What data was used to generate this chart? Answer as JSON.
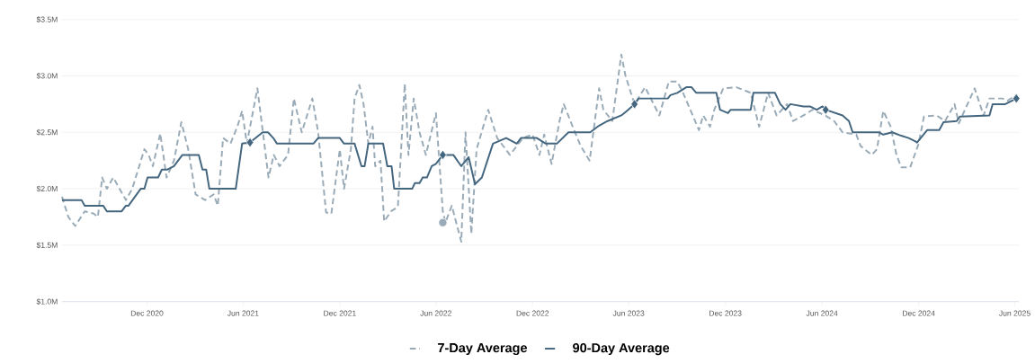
{
  "chart_data": {
    "type": "line",
    "xlim": [
      "2020-06-23",
      "2025-06-09"
    ],
    "ylim": [
      1.0,
      3.5
    ],
    "xticks": [
      {
        "value": "2020-12-01",
        "label": "Dec 2020"
      },
      {
        "value": "2021-06-01",
        "label": "Jun 2021"
      },
      {
        "value": "2021-12-01",
        "label": "Dec 2021"
      },
      {
        "value": "2022-06-01",
        "label": "Jun 2022"
      },
      {
        "value": "2022-12-01",
        "label": "Dec 2022"
      },
      {
        "value": "2023-06-01",
        "label": "Jun 2023"
      },
      {
        "value": "2023-12-01",
        "label": "Dec 2023"
      },
      {
        "value": "2024-06-01",
        "label": "Jun 2024"
      },
      {
        "value": "2024-12-01",
        "label": "Dec 2024"
      },
      {
        "value": "2025-06-01",
        "label": "Jun 2025"
      }
    ],
    "yticks": [
      {
        "value": 1.0,
        "label": "$1.0M"
      },
      {
        "value": 1.5,
        "label": "$1.5M"
      },
      {
        "value": 2.0,
        "label": "$2.0M"
      },
      {
        "value": 2.5,
        "label": "$2.5M"
      },
      {
        "value": 3.0,
        "label": "$3.0M"
      },
      {
        "value": 3.5,
        "label": "$3.5M"
      }
    ],
    "grid": "y",
    "legend": "bottom",
    "series": [
      {
        "name": "7-Day Average",
        "color": "#9aabb8",
        "line_style": "dashed",
        "x": [
          "2020-06-23",
          "2020-07-05",
          "2020-07-18",
          "2020-08-05",
          "2020-08-22",
          "2020-08-30",
          "2020-09-07",
          "2020-09-16",
          "2020-09-28",
          "2020-10-22",
          "2020-11-03",
          "2020-11-26",
          "2020-12-04",
          "2020-12-12",
          "2020-12-26",
          "2021-01-07",
          "2021-01-21",
          "2021-02-04",
          "2021-02-17",
          "2021-03-03",
          "2021-03-21",
          "2021-04-06",
          "2021-04-14",
          "2021-04-24",
          "2021-05-08",
          "2021-05-21",
          "2021-05-30",
          "2021-06-08",
          "2021-06-28",
          "2021-07-19",
          "2021-07-29",
          "2021-08-09",
          "2021-08-25",
          "2021-09-05",
          "2021-09-20",
          "2021-10-10",
          "2021-10-21",
          "2021-11-05",
          "2021-11-15",
          "2021-12-01",
          "2021-12-09",
          "2021-12-22",
          "2021-12-29",
          "2022-01-07",
          "2022-01-15",
          "2022-01-24",
          "2022-02-01",
          "2022-02-06",
          "2022-02-16",
          "2022-02-23",
          "2022-03-08",
          "2022-03-21",
          "2022-04-03",
          "2022-04-10",
          "2022-04-20",
          "2022-05-01",
          "2022-05-13",
          "2022-06-01",
          "2022-06-14",
          "2022-06-19",
          "2022-07-01",
          "2022-07-19",
          "2022-07-27",
          "2022-08-07",
          "2022-08-17",
          "2022-09-08",
          "2022-09-25",
          "2022-10-19",
          "2022-11-13",
          "2022-12-01",
          "2022-12-14",
          "2022-12-23",
          "2023-01-06",
          "2023-01-21",
          "2023-01-29",
          "2023-02-15",
          "2023-03-02",
          "2023-03-19",
          "2023-04-06",
          "2023-04-14",
          "2023-05-01",
          "2023-05-18",
          "2023-05-26",
          "2023-06-12",
          "2023-07-02",
          "2023-07-29",
          "2023-08-16",
          "2023-09-01",
          "2023-09-12",
          "2023-10-12",
          "2023-10-20",
          "2023-11-02",
          "2023-11-10",
          "2023-11-27",
          "2023-12-22",
          "2024-01-18",
          "2024-02-03",
          "2024-02-20",
          "2024-03-07",
          "2024-03-27",
          "2024-04-07",
          "2024-04-27",
          "2024-05-14",
          "2024-06-07",
          "2024-06-24",
          "2024-07-10",
          "2024-08-05",
          "2024-08-13",
          "2024-09-03",
          "2024-09-13",
          "2024-09-25",
          "2024-10-09",
          "2024-10-20",
          "2024-10-29",
          "2024-11-15",
          "2024-12-01",
          "2024-12-11",
          "2025-01-04",
          "2025-01-20",
          "2025-02-07",
          "2025-02-15",
          "2025-03-17",
          "2025-04-03",
          "2025-04-14",
          "2025-05-09",
          "2025-05-18",
          "2025-06-04"
        ],
        "values": [
          1.93,
          1.75,
          1.67,
          1.8,
          1.78,
          1.75,
          2.1,
          2.0,
          2.1,
          1.9,
          2.0,
          2.35,
          2.3,
          2.2,
          2.49,
          2.1,
          2.25,
          2.59,
          2.35,
          1.95,
          1.9,
          1.95,
          1.85,
          2.45,
          2.4,
          2.55,
          2.69,
          2.4,
          2.89,
          2.1,
          2.3,
          2.2,
          2.3,
          2.8,
          2.5,
          2.8,
          2.5,
          1.79,
          1.78,
          2.35,
          2.0,
          2.35,
          2.8,
          2.92,
          2.75,
          2.4,
          2.55,
          2.2,
          2.25,
          1.71,
          1.8,
          1.84,
          2.93,
          2.3,
          2.8,
          2.5,
          2.3,
          2.67,
          1.8,
          1.7,
          1.85,
          1.53,
          2.5,
          1.6,
          2.35,
          2.7,
          2.45,
          2.3,
          2.45,
          2.48,
          2.3,
          2.48,
          2.22,
          2.6,
          2.75,
          2.55,
          2.38,
          2.25,
          2.89,
          2.7,
          2.6,
          3.19,
          3.0,
          2.75,
          2.9,
          2.65,
          2.95,
          2.95,
          2.85,
          2.52,
          2.65,
          2.55,
          2.7,
          2.89,
          2.9,
          2.85,
          2.55,
          2.85,
          2.65,
          2.75,
          2.6,
          2.65,
          2.7,
          2.65,
          2.6,
          2.5,
          2.48,
          2.38,
          2.3,
          2.35,
          2.69,
          2.55,
          2.3,
          2.19,
          2.19,
          2.4,
          2.64,
          2.65,
          2.6,
          2.75,
          2.58,
          2.89,
          2.65,
          2.8,
          2.8,
          2.78,
          2.83
        ]
      },
      {
        "name": "90-Day Average",
        "color": "#44667f",
        "line_style": "solid",
        "x": [
          "2020-06-23",
          "2020-07-30",
          "2020-08-05",
          "2020-09-09",
          "2020-09-16",
          "2020-10-14",
          "2020-10-22",
          "2020-10-27",
          "2020-11-19",
          "2020-11-26",
          "2020-12-02",
          "2020-12-22",
          "2020-12-29",
          "2021-01-09",
          "2021-01-21",
          "2021-02-06",
          "2021-03-09",
          "2021-03-16",
          "2021-03-23",
          "2021-03-29",
          "2021-05-18",
          "2021-05-30",
          "2021-06-14",
          "2021-07-08",
          "2021-07-18",
          "2021-07-28",
          "2021-08-04",
          "2021-10-12",
          "2021-10-21",
          "2021-12-01",
          "2021-12-09",
          "2021-12-29",
          "2022-01-11",
          "2022-01-17",
          "2022-01-24",
          "2022-02-21",
          "2022-03-01",
          "2022-03-09",
          "2022-03-14",
          "2022-04-17",
          "2022-04-22",
          "2022-05-01",
          "2022-05-07",
          "2022-05-15",
          "2022-05-24",
          "2022-06-01",
          "2022-06-14",
          "2022-07-04",
          "2022-07-19",
          "2022-08-02",
          "2022-08-14",
          "2022-08-27",
          "2022-09-17",
          "2022-10-12",
          "2022-11-01",
          "2022-11-09",
          "2022-12-09",
          "2022-12-26",
          "2023-01-16",
          "2023-02-07",
          "2023-03-20",
          "2023-04-06",
          "2023-04-22",
          "2023-05-18",
          "2023-05-26",
          "2023-06-12",
          "2023-06-20",
          "2023-08-14",
          "2023-08-19",
          "2023-09-01",
          "2023-09-18",
          "2023-09-28",
          "2023-10-07",
          "2023-11-14",
          "2023-11-21",
          "2023-12-06",
          "2023-12-11",
          "2024-01-18",
          "2024-01-23",
          "2024-03-04",
          "2024-03-14",
          "2024-03-24",
          "2024-04-02",
          "2024-04-27",
          "2024-05-09",
          "2024-05-22",
          "2024-06-02",
          "2024-06-08",
          "2024-07-10",
          "2024-07-22",
          "2024-07-29",
          "2024-09-17",
          "2024-09-25",
          "2024-10-12",
          "2024-10-29",
          "2024-11-12",
          "2024-11-25",
          "2024-11-28",
          "2024-12-17",
          "2025-01-09",
          "2025-01-17",
          "2025-02-11",
          "2025-02-17",
          "2025-04-14",
          "2025-04-20",
          "2025-05-14",
          "2025-06-04"
        ],
        "values": [
          1.9,
          1.9,
          1.85,
          1.85,
          1.8,
          1.8,
          1.85,
          1.85,
          2.0,
          2.0,
          2.1,
          2.1,
          2.17,
          2.17,
          2.2,
          2.3,
          2.3,
          2.17,
          2.17,
          2.0,
          2.0,
          2.4,
          2.41,
          2.5,
          2.5,
          2.45,
          2.4,
          2.4,
          2.45,
          2.45,
          2.4,
          2.4,
          2.2,
          2.2,
          2.4,
          2.4,
          2.2,
          2.2,
          2.0,
          2.0,
          2.05,
          2.05,
          2.1,
          2.1,
          2.2,
          2.22,
          2.3,
          2.3,
          2.2,
          2.28,
          2.04,
          2.1,
          2.4,
          2.45,
          2.4,
          2.45,
          2.45,
          2.4,
          2.4,
          2.5,
          2.5,
          2.56,
          2.6,
          2.65,
          2.68,
          2.75,
          2.8,
          2.8,
          2.83,
          2.85,
          2.9,
          2.9,
          2.85,
          2.85,
          2.7,
          2.67,
          2.7,
          2.7,
          2.85,
          2.85,
          2.75,
          2.7,
          2.75,
          2.73,
          2.73,
          2.7,
          2.73,
          2.7,
          2.65,
          2.6,
          2.5,
          2.5,
          2.48,
          2.5,
          2.47,
          2.45,
          2.42,
          2.41,
          2.52,
          2.52,
          2.59,
          2.6,
          2.64,
          2.65,
          2.75,
          2.75,
          2.8
        ]
      },
      {
        "type": "scatter",
        "marker": "diamond",
        "color": "#44667f",
        "x": [
          "2021-06-14",
          "2022-06-14",
          "2023-06-12",
          "2024-06-08",
          "2025-06-04"
        ],
        "values": [
          2.41,
          2.3,
          2.75,
          2.7,
          2.8
        ]
      },
      {
        "type": "scatter",
        "marker": "circle",
        "color": "#9aabb8",
        "x": [
          "2022-06-14"
        ],
        "values": [
          1.7
        ]
      }
    ]
  }
}
